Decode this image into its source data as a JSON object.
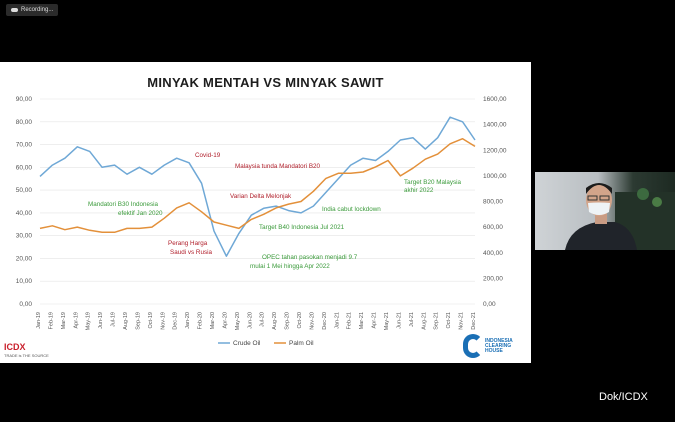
{
  "recording": {
    "label": "Recording..."
  },
  "slide": {
    "title": "MINYAK MENTAH VS MINYAK SAWIT",
    "icdx": {
      "name": "ICDX",
      "tagline": "TRADE is THE SOURCE"
    },
    "ich": {
      "line1": "INDONESIA",
      "line2": "CLEARING",
      "line3": "HOUSE"
    }
  },
  "credit": "Dok/ICDX",
  "chart_data": {
    "type": "line",
    "title": "MINYAK MENTAH VS MINYAK SAWIT",
    "categories": [
      "Jan-19",
      "Feb-19",
      "Mar-19",
      "Apr-19",
      "May-19",
      "Jun-19",
      "Jul-19",
      "Aug-19",
      "Sep-19",
      "Oct-19",
      "Nov-19",
      "Dec-19",
      "Jan-20",
      "Feb-20",
      "Mar-20",
      "Apr-20",
      "May-20",
      "Jun-20",
      "Jul-20",
      "Aug-20",
      "Sep-20",
      "Oct-20",
      "Nov-20",
      "Dec-20",
      "Jan-21",
      "Feb-21",
      "Mar-21",
      "Apr-21",
      "May-21",
      "Jun-21",
      "Jul-21",
      "Aug-21",
      "Sep-21",
      "Oct-21",
      "Nov-21",
      "Dec-21"
    ],
    "y_left": {
      "ylim": [
        0,
        90
      ],
      "ticks": [
        "0,00",
        "10,00",
        "20,00",
        "30,00",
        "40,00",
        "50,00",
        "60,00",
        "70,00",
        "80,00",
        "90,00"
      ]
    },
    "y_right": {
      "ylim": [
        0,
        1600
      ],
      "ticks": [
        "0,00",
        "200,00",
        "400,00",
        "600,00",
        "800,00",
        "1000,00",
        "1200,00",
        "1400,00",
        "1600,00"
      ]
    },
    "series": [
      {
        "name": "Crude Oil",
        "axis": "left",
        "color": "#6fa8d6",
        "values": [
          56,
          61,
          64,
          69,
          67,
          60,
          61,
          57,
          60,
          57,
          61,
          64,
          62,
          53,
          32,
          21,
          31,
          39,
          42,
          43,
          41,
          40,
          43,
          49,
          55,
          61,
          64,
          63,
          67,
          72,
          73,
          68,
          73,
          82,
          80,
          72
        ]
      },
      {
        "name": "Palm Oil",
        "axis": "right",
        "color": "#e3903a",
        "values": [
          590,
          610,
          580,
          600,
          575,
          560,
          560,
          590,
          590,
          600,
          670,
          750,
          790,
          720,
          640,
          615,
          590,
          660,
          700,
          750,
          780,
          800,
          880,
          980,
          1020,
          1020,
          1030,
          1070,
          1120,
          1000,
          1060,
          1130,
          1170,
          1250,
          1290,
          1230
        ]
      }
    ],
    "annotations": [
      {
        "text": "Covid-19",
        "color": "#b01e2a"
      },
      {
        "text": "Malaysia tunda Mandatori B20",
        "color": "#b01e2a"
      },
      {
        "text": "Varian Delta Melonjak",
        "color": "#b01e2a"
      },
      {
        "text": "Mandatori B30 Indonesia",
        "color": "#3a9a3a"
      },
      {
        "text": "efektif Jan 2020",
        "color": "#3a9a3a"
      },
      {
        "text": "India cabut lockdown",
        "color": "#3a9a3a"
      },
      {
        "text": "Target B40 Indonesia Jul 2021",
        "color": "#3a9a3a"
      },
      {
        "text": "Target B20 Malaysia",
        "color": "#3a9a3a"
      },
      {
        "text": "akhir 2022",
        "color": "#3a9a3a"
      },
      {
        "text": "Perang Harga",
        "color": "#b01e2a"
      },
      {
        "text": "Saudi vs Rusia",
        "color": "#b01e2a"
      },
      {
        "text": "OPEC tahan pasokan menjadi 9.7",
        "color": "#3a9a3a"
      },
      {
        "text": "mulai 1 Mei hingga Apr 2022",
        "color": "#3a9a3a"
      }
    ],
    "legend": "bottom"
  }
}
